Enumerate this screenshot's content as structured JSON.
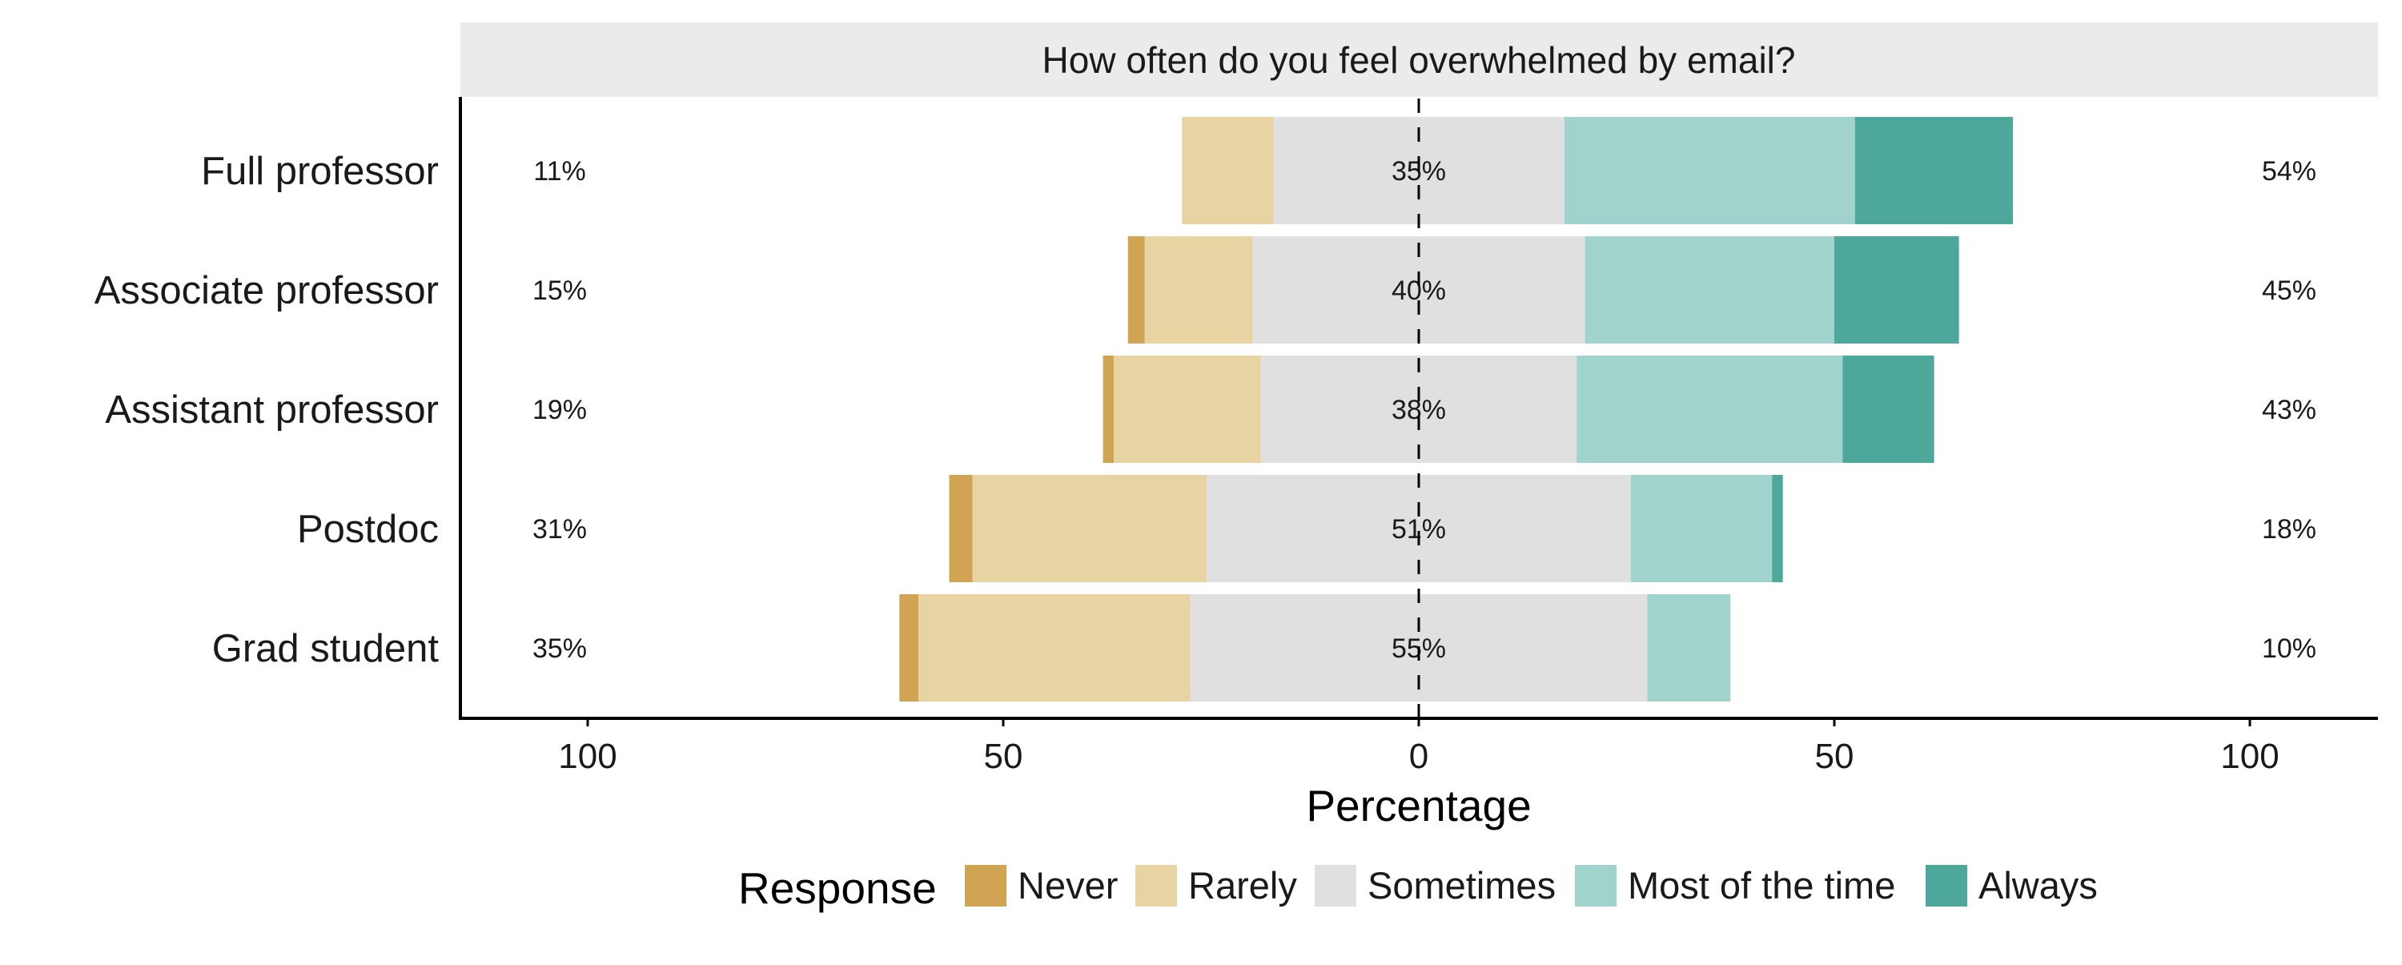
{
  "chart_data": {
    "type": "bar",
    "subtype": "diverging-stacked-likert",
    "title": "How often do you feel overwhelmed by email?",
    "xlabel": "Percentage",
    "ylabel": "",
    "xlim": [
      -100,
      100
    ],
    "x_ticks": [
      -100,
      -50,
      0,
      50,
      100
    ],
    "x_tick_labels": [
      "100",
      "50",
      "0",
      "50",
      "100"
    ],
    "grid": false,
    "legend": {
      "title": "Response",
      "placement": "bottom",
      "labels": [
        "Never",
        "Rarely",
        "Sometimes",
        "Most of the time",
        "Always"
      ]
    },
    "colors": {
      "Never": "#D0A452",
      "Rarely": "#E8D3A3",
      "Sometimes": "#E0E0E0",
      "Most of the time": "#A0D3CC",
      "Always": "#4DA89B"
    },
    "categories": [
      "Full professor",
      "Associate professor",
      "Assistant professor",
      "Postdoc",
      "Grad student"
    ],
    "series": [
      {
        "name": "Never",
        "values": [
          0,
          2,
          1.3,
          2.8,
          2.3
        ]
      },
      {
        "name": "Rarely",
        "values": [
          11,
          13,
          17.7,
          28.2,
          32.7
        ]
      },
      {
        "name": "Sometimes",
        "values": [
          35,
          40,
          38,
          51,
          55
        ]
      },
      {
        "name": "Most of the time",
        "values": [
          35,
          30,
          32,
          17,
          10
        ]
      },
      {
        "name": "Always",
        "values": [
          19,
          15,
          11,
          1.3,
          0
        ]
      }
    ],
    "left_labels": [
      "11%",
      "15%",
      "19%",
      "31%",
      "35%"
    ],
    "center_labels": [
      "35%",
      "40%",
      "38%",
      "51%",
      "55%"
    ],
    "right_labels": [
      "54%",
      "45%",
      "43%",
      "18%",
      "10%"
    ]
  }
}
